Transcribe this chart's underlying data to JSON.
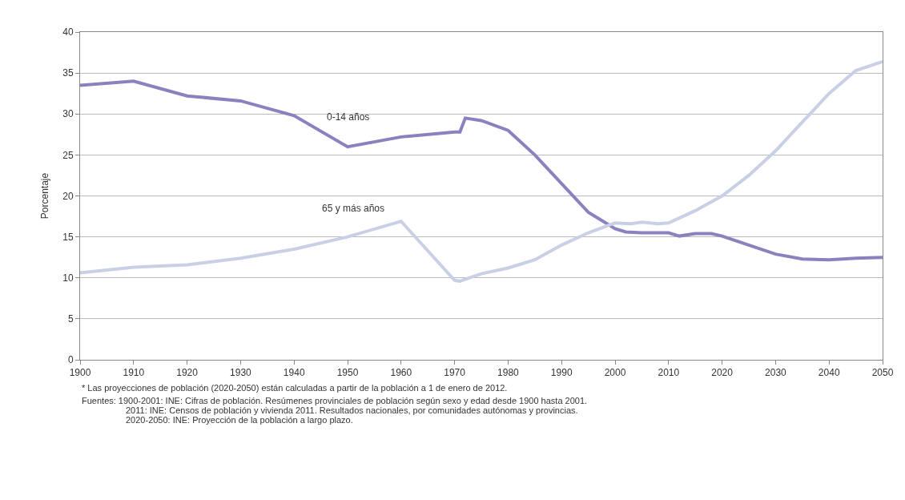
{
  "chart_data": {
    "type": "line",
    "ylabel": "Porcentaje",
    "xlim": [
      1900,
      2050
    ],
    "xticks": [
      1900,
      1910,
      1920,
      1930,
      1940,
      1950,
      1960,
      1970,
      1980,
      1990,
      2000,
      2010,
      2020,
      2030,
      2040,
      2050
    ],
    "ylim": [
      0,
      40
    ],
    "yticks": [
      0,
      5,
      10,
      15,
      20,
      25,
      30,
      35,
      40
    ],
    "grid": "y",
    "legend": false,
    "marker": "none",
    "line_style": "solid",
    "series": [
      {
        "name": "0-14 años",
        "color": "#8a82bf",
        "x": [
          1900,
          1910,
          1920,
          1930,
          1940,
          1950,
          1960,
          1970,
          1971,
          1972,
          1975,
          1980,
          1985,
          1990,
          1995,
          2000,
          2002,
          2005,
          2008,
          2010,
          2012,
          2015,
          2018,
          2020,
          2025,
          2030,
          2035,
          2040,
          2045,
          2050
        ],
        "values": [
          33.5,
          34.0,
          32.2,
          31.6,
          29.8,
          26.0,
          27.2,
          27.8,
          27.8,
          29.5,
          29.2,
          28.0,
          25.0,
          21.5,
          18.0,
          16.0,
          15.6,
          15.5,
          15.5,
          15.5,
          15.1,
          15.4,
          15.4,
          15.1,
          14.0,
          12.9,
          12.3,
          12.2,
          12.4,
          12.5
        ]
      },
      {
        "name": "65 y más años",
        "color": "#c9d0e6",
        "x": [
          1900,
          1910,
          1920,
          1930,
          1940,
          1950,
          1960,
          1970,
          1971,
          1975,
          1980,
          1985,
          1990,
          1995,
          2000,
          2003,
          2005,
          2008,
          2010,
          2012,
          2015,
          2020,
          2025,
          2030,
          2035,
          2040,
          2045,
          2050
        ],
        "values": [
          10.6,
          11.3,
          11.6,
          12.4,
          13.5,
          15.0,
          16.9,
          9.7,
          9.6,
          10.5,
          11.2,
          12.2,
          14.0,
          15.5,
          16.7,
          16.6,
          16.8,
          16.6,
          16.7,
          17.3,
          18.2,
          20.0,
          22.5,
          25.5,
          29.0,
          32.5,
          35.3,
          36.4
        ]
      }
    ],
    "annotations": [
      "* Las proyecciones de población (2020-2050) están calculadas a partir de la población a 1 de enero de 2012.",
      "Fuentes: 1900-2001: INE: Cifras de población. Resúmenes provinciales de población según sexo y edad desde 1900 hasta 2001.",
      "2011: INE: Censos de población y vivienda 2011. Resultados nacionales, por comunidades autónomas y provincias.",
      "2020-2050: INE: Proyección de la población a largo plazo."
    ]
  }
}
